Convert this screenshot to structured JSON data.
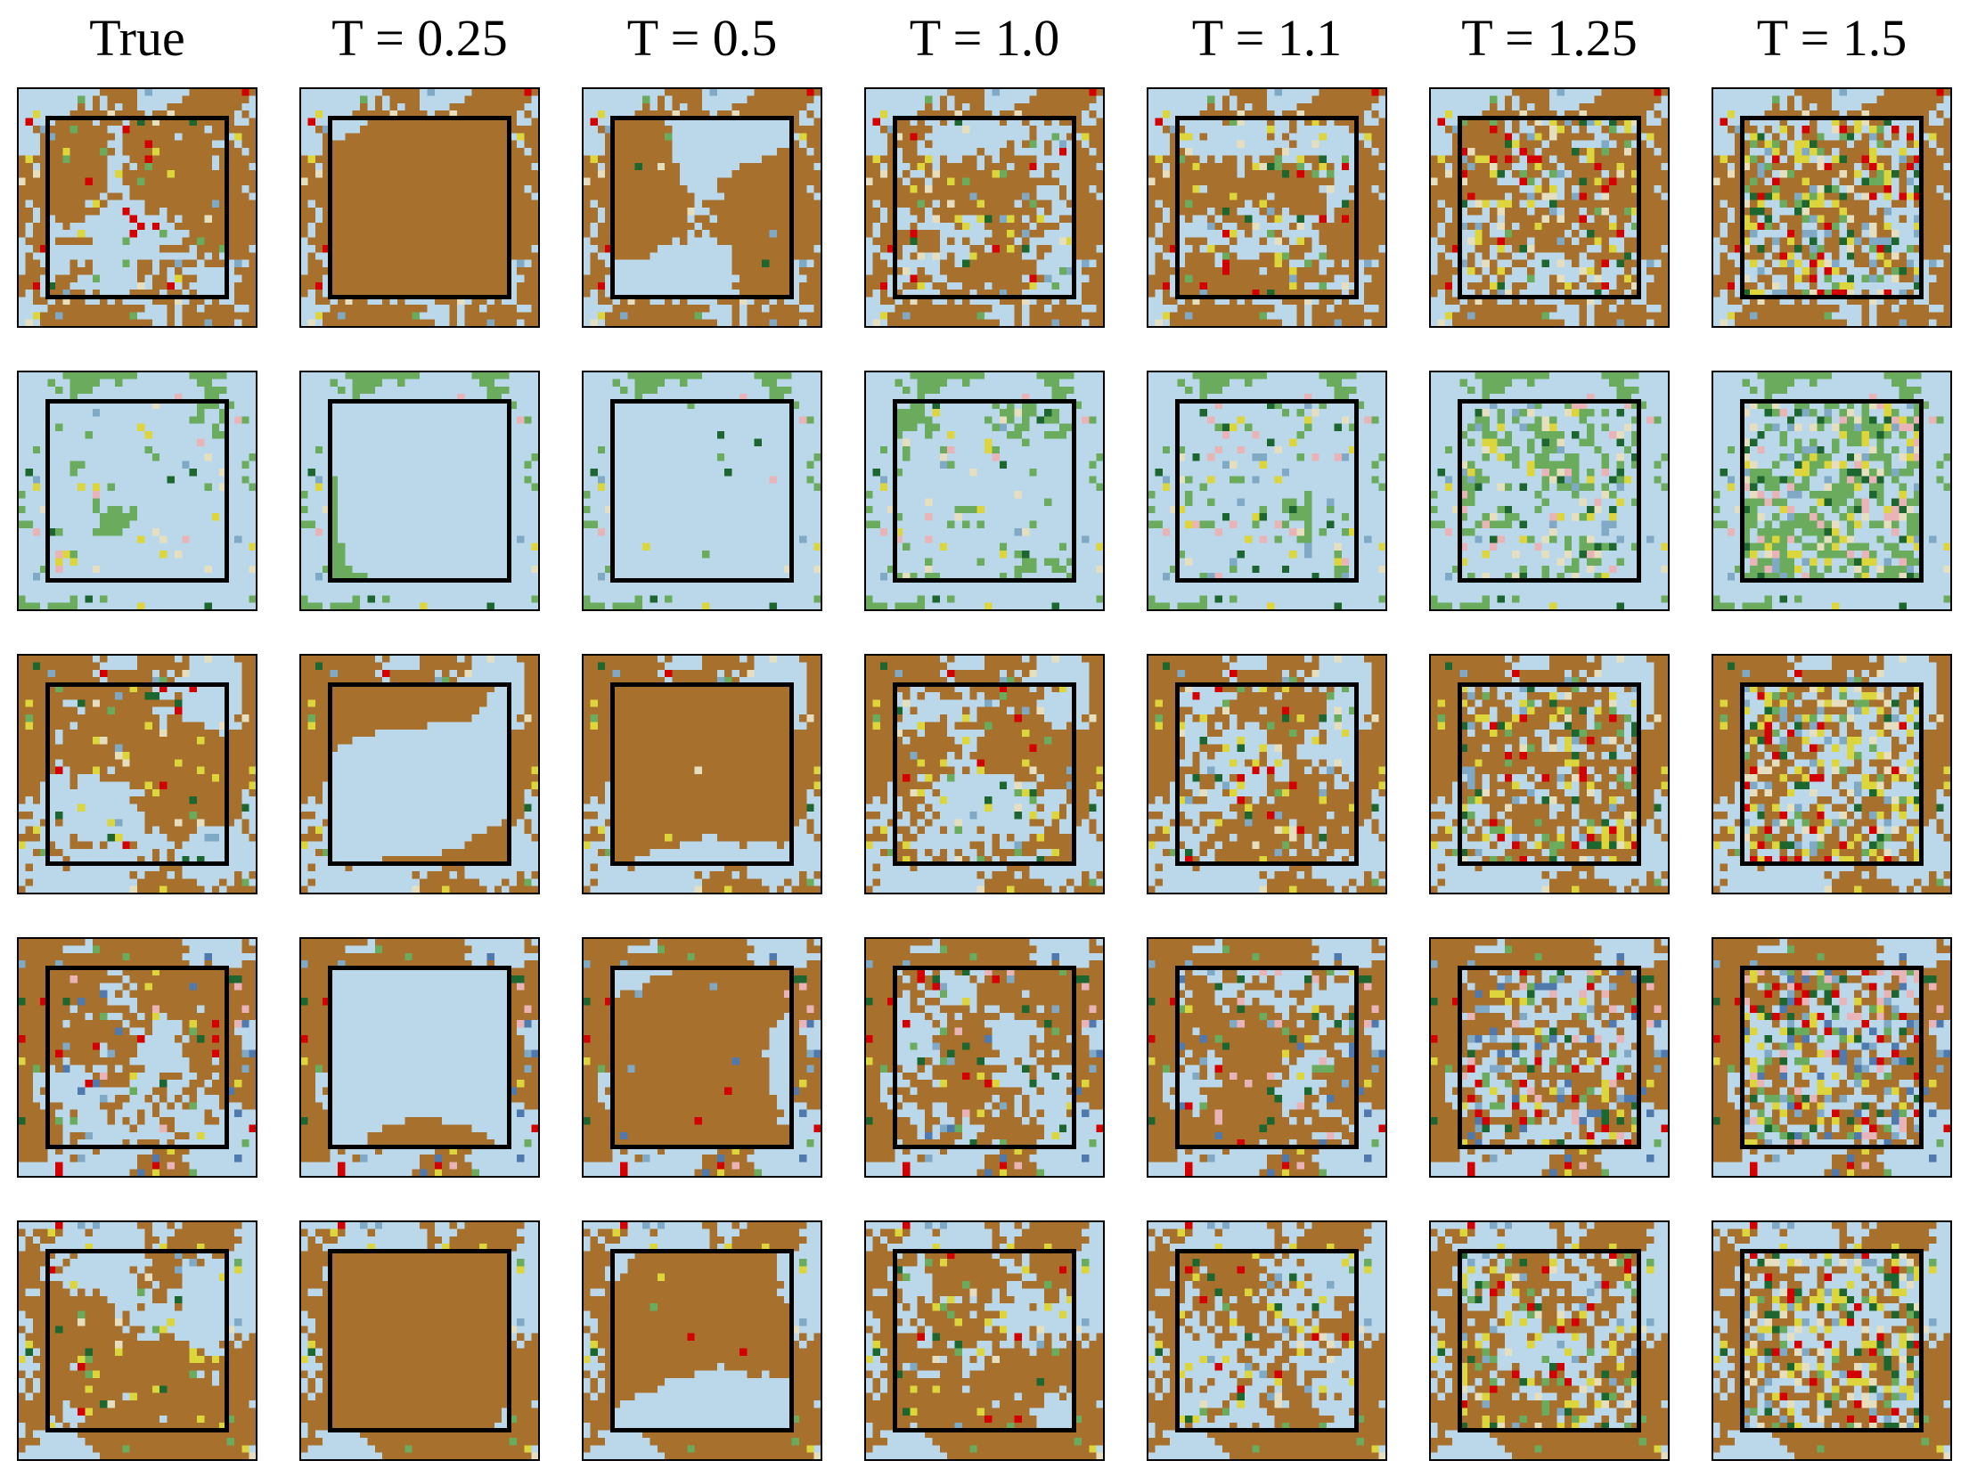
{
  "columns": [
    "True",
    "T = 0.25",
    "T = 0.5",
    "T = 1.0",
    "T = 1.1",
    "T = 1.25",
    "T = 1.5"
  ]
}
